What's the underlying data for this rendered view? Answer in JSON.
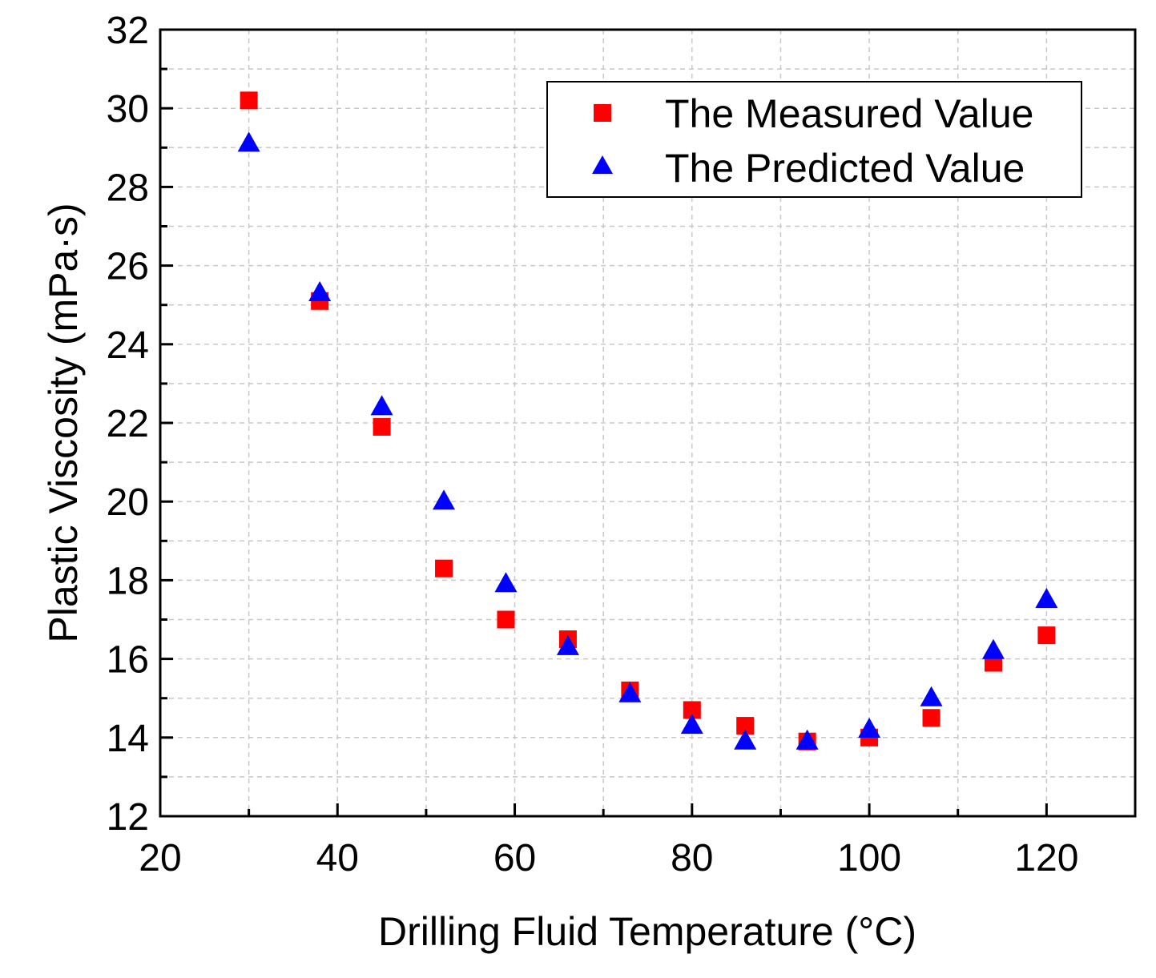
{
  "chart_data": {
    "type": "scatter",
    "title": "",
    "xlabel": "Drilling Fluid Temperature (°C)",
    "ylabel": "Plastic Viscosity (mPa·s)",
    "xlim": [
      20,
      130
    ],
    "ylim": [
      12,
      32
    ],
    "xticks": [
      20,
      40,
      60,
      80,
      100,
      120
    ],
    "yticks": [
      12,
      14,
      16,
      18,
      20,
      22,
      24,
      26,
      28,
      30,
      32
    ],
    "grid": true,
    "legend_position": "top-right",
    "series": [
      {
        "name": "The Measured Value",
        "marker": "square",
        "color": "#ff0000",
        "x": [
          30,
          38,
          45,
          52,
          59,
          66,
          73,
          80,
          86,
          93,
          100,
          107,
          114,
          120
        ],
        "y": [
          30.2,
          25.1,
          21.9,
          18.3,
          17.0,
          16.5,
          15.2,
          14.7,
          14.3,
          13.9,
          14.0,
          14.5,
          15.9,
          16.6
        ]
      },
      {
        "name": "The Predicted Value",
        "marker": "triangle",
        "color": "#0000ff",
        "x": [
          30,
          38,
          45,
          52,
          59,
          66,
          73,
          80,
          86,
          93,
          100,
          107,
          114,
          120
        ],
        "y": [
          29.1,
          25.3,
          22.4,
          20.0,
          17.9,
          16.3,
          15.1,
          14.3,
          13.9,
          13.9,
          14.2,
          15.0,
          16.2,
          17.5
        ]
      }
    ]
  }
}
